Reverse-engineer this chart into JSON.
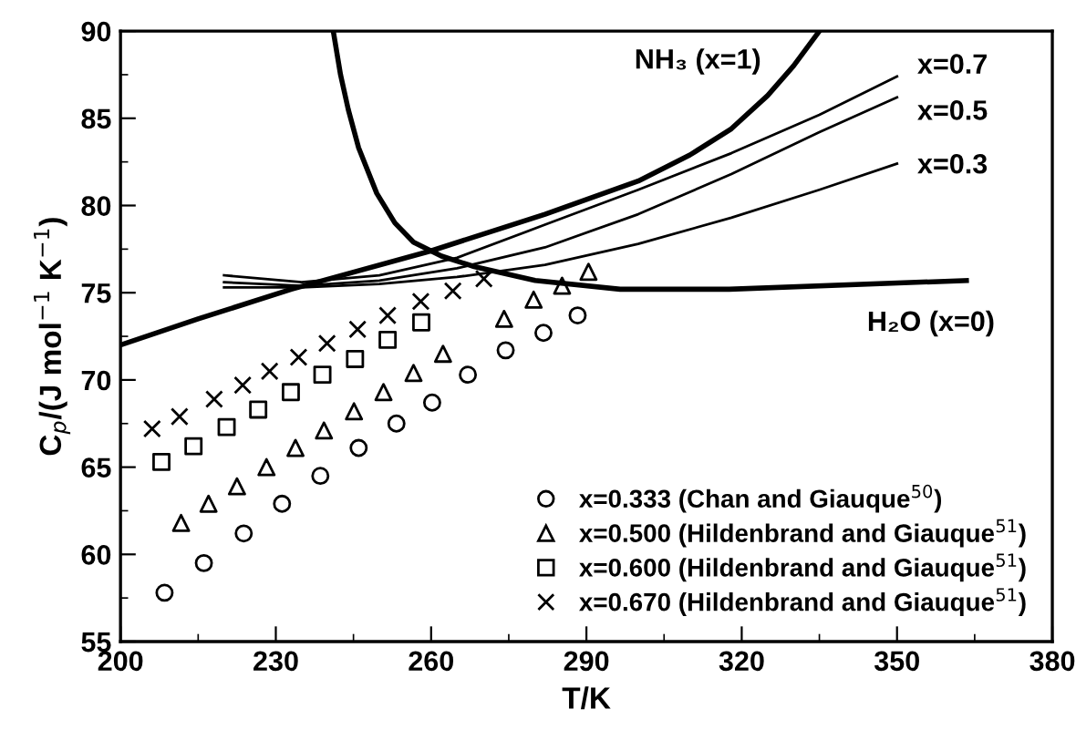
{
  "chart_data": {
    "type": "scatter",
    "xlabel": "T/K",
    "ylabel": "C$_{p}$/(J mol$^{−1}$ K$^{−1}$)",
    "xlim": [
      200,
      380
    ],
    "xticks": [
      200,
      230,
      260,
      290,
      320,
      350,
      380
    ],
    "ylim": [
      55,
      90
    ],
    "yticks": [
      55,
      60,
      65,
      70,
      75,
      80,
      85,
      90
    ],
    "grid": false,
    "legend": "bottom right",
    "series": [
      {
        "name": "x=0.333 (Chan and Giauque$^{50}$)",
        "color": "#000000",
        "marker": "circle",
        "x": [
          208.5,
          216.1,
          223.8,
          231.2,
          238.6,
          246.0,
          253.3,
          260.2,
          267.1,
          274.4,
          281.7,
          288.3
        ],
        "values": [
          57.8,
          59.5,
          61.2,
          62.9,
          64.5,
          66.1,
          67.5,
          68.7,
          70.3,
          71.7,
          72.7,
          73.7
        ]
      },
      {
        "name": "x=0.500 (Hildenbrand and Giauque$^{51}$)",
        "color": "#000000",
        "marker": "triangle",
        "x": [
          211.7,
          217.0,
          222.5,
          228.2,
          233.8,
          239.3,
          245.1,
          250.8,
          256.6,
          262.3,
          274.1,
          279.8,
          285.3,
          290.4
        ],
        "values": [
          61.8,
          62.9,
          63.9,
          65.0,
          66.1,
          67.1,
          68.2,
          69.3,
          70.4,
          71.5,
          73.5,
          74.6,
          75.4,
          76.2
        ]
      },
      {
        "name": "x=0.600 (Hildenbrand and Giauque$^{51}$)",
        "color": "#000000",
        "marker": "square",
        "x": [
          207.9,
          214.1,
          220.5,
          226.6,
          232.9,
          239.0,
          245.3,
          251.6,
          258.1
        ],
        "values": [
          65.3,
          66.2,
          67.3,
          68.3,
          69.3,
          70.3,
          71.2,
          72.3,
          73.3
        ]
      },
      {
        "name": "x=0.670 (Hildenbrand and Giauque$^{51}$)",
        "color": "#000000",
        "marker": "cross",
        "x": [
          206.1,
          211.4,
          218.1,
          223.6,
          228.8,
          234.4,
          239.9,
          245.8,
          251.6,
          258.0,
          264.2,
          270.2
        ],
        "values": [
          67.2,
          67.9,
          68.9,
          69.7,
          70.5,
          71.3,
          72.1,
          72.9,
          73.7,
          74.5,
          75.1,
          75.8
        ]
      },
      {
        "type": "line",
        "name": "NH₃ (x=1)",
        "color": "#000000",
        "x": [
          200,
          215,
          233,
          260,
          282,
          300,
          310,
          318,
          325,
          330,
          335
        ],
        "values": [
          72.0,
          73.5,
          75.2,
          77.4,
          79.5,
          81.4,
          82.9,
          84.4,
          86.3,
          88.0,
          90.0
        ]
      },
      {
        "type": "line",
        "name": "H₂O (x=0)",
        "color": "#000000",
        "x": [
          241.1,
          242.5,
          244,
          246,
          249.5,
          253,
          256.6,
          262,
          268.3,
          280.1,
          296.5,
          317.6,
          363.4
        ],
        "values": [
          90.0,
          87.5,
          85.5,
          83.3,
          80.7,
          79.0,
          77.9,
          77.1,
          76.5,
          75.7,
          75.2,
          75.2,
          75.7
        ]
      },
      {
        "type": "line",
        "name": "x=0.7",
        "color": "#000000",
        "x": [
          220,
          235,
          250,
          265,
          282,
          300,
          318,
          335,
          350
        ],
        "values": [
          76.0,
          75.6,
          76.0,
          77.0,
          78.9,
          80.9,
          83.0,
          85.2,
          87.4
        ]
      },
      {
        "type": "line",
        "name": "x=0.5",
        "color": "#000000",
        "x": [
          220,
          235,
          250,
          265,
          282,
          300,
          318,
          335,
          350
        ],
        "values": [
          75.6,
          75.4,
          75.7,
          76.4,
          77.6,
          79.5,
          81.8,
          84.2,
          86.2
        ]
      },
      {
        "type": "line",
        "name": "x=0.3",
        "color": "#000000",
        "x": [
          220,
          235,
          250,
          265,
          282,
          300,
          318,
          335,
          350
        ],
        "values": [
          75.3,
          75.3,
          75.5,
          75.9,
          76.6,
          77.8,
          79.3,
          80.9,
          82.4
        ]
      }
    ]
  }
}
